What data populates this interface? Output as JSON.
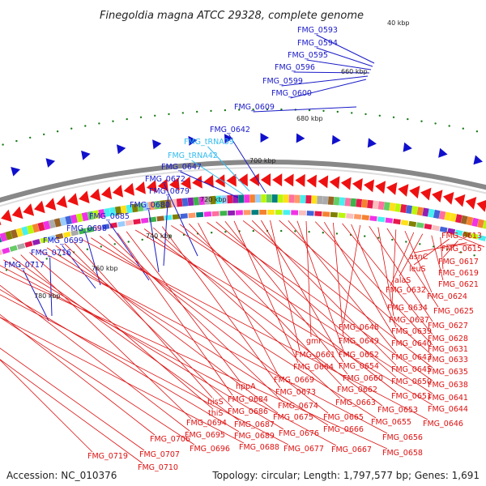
{
  "title": "Finegoldia magna ATCC 29328, complete genome",
  "footer": {
    "accession": "Accession: NC_010376",
    "topology": "Topology: circular; Length: 1,797,577 bp; Genes: 1,691"
  },
  "colors": {
    "outer_label": "#1a1ac8",
    "trna_label": "#33bbee",
    "inner_label": "#dd1111",
    "backbone": "#888888",
    "arrow_outer": "#1010cc",
    "arrow_inner": "#ee1111",
    "tick_dot": "#1a7a1a"
  },
  "ticks": [
    "40 kbp",
    "660 kbp",
    "680 kbp",
    "700 kbp",
    "720 kbp",
    "740 kbp",
    "760 kbp",
    "780 kbp"
  ],
  "outer_labels": [
    {
      "text": "FMG_0593",
      "kind": "gene"
    },
    {
      "text": "FMG_0594",
      "kind": "gene"
    },
    {
      "text": "FMG_0595",
      "kind": "gene"
    },
    {
      "text": "FMG_0596",
      "kind": "gene"
    },
    {
      "text": "FMG_0599",
      "kind": "gene"
    },
    {
      "text": "FMG_0600",
      "kind": "gene"
    },
    {
      "text": "FMG_0609",
      "kind": "gene"
    },
    {
      "text": "FMG_0642",
      "kind": "gene"
    },
    {
      "text": "FMG_tRNA39",
      "kind": "trna"
    },
    {
      "text": "FMG_tRNA42",
      "kind": "trna"
    },
    {
      "text": "FMG_0647",
      "kind": "gene"
    },
    {
      "text": "FMG_0672",
      "kind": "gene"
    },
    {
      "text": "FMG_0679",
      "kind": "gene"
    },
    {
      "text": "FMG_0680",
      "kind": "gene"
    },
    {
      "text": "FMG_0685",
      "kind": "gene"
    },
    {
      "text": "FMG_0698",
      "kind": "gene"
    },
    {
      "text": "FMG_0699",
      "kind": "gene"
    },
    {
      "text": "FMG_0716",
      "kind": "gene"
    },
    {
      "text": "FMG_0717",
      "kind": "gene"
    }
  ],
  "inner_labels": [
    "FMG_0613",
    "FMG_0615",
    "asnC",
    "FMG_0617",
    "leuS",
    "FMG_0619",
    "FMG_0621",
    "alaS",
    "FMG_0632",
    "FMG_0624",
    "FMG_0634",
    "FMG_0625",
    "FMG_0637",
    "FMG_0627",
    "FMG_0648",
    "FMG_0639",
    "FMG_0628",
    "FMG_0649",
    "FMG_0640",
    "FMG_0631",
    "gmr",
    "FMG_0652",
    "FMG_0643",
    "FMG_0633",
    "FMG_0661",
    "FMG_0654",
    "FMG_0645",
    "FMG_0635",
    "FMG_0664",
    "FMG_0660",
    "FMG_0650",
    "FMG_0638",
    "FMG_0669",
    "FMG_0662",
    "FMG_0651",
    "FMG_0641",
    "FMG_0673",
    "FMG_0663",
    "FMG_0653",
    "FMG_0644",
    "hppA",
    "FMG_0684",
    "FMG_0674",
    "FMG_0665",
    "FMG_0655",
    "FMG_0646",
    "hisS",
    "FMG_0686",
    "FMG_0675",
    "FMG_0666",
    "FMG_0656",
    "thiS",
    "FMG_0694",
    "FMG_0687",
    "FMG_0676",
    "FMG_0667",
    "FMG_0658",
    "FMG_0695",
    "FMG_0689",
    "FMG_0677",
    "FMG_0706",
    "FMG_0696",
    "FMG_0688",
    "FMG_0719",
    "FMG_0707",
    "FMG_0710"
  ]
}
